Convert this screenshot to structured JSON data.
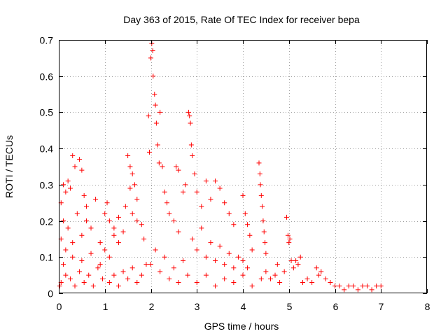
{
  "chart_data": {
    "type": "scatter",
    "title": "Day 363 of 2015, Rate Of TEC Index for receiver bepa",
    "xlabel": "GPS time / hours",
    "ylabel": "ROTI / TECUs",
    "xlim": [
      0,
      8
    ],
    "ylim": [
      0,
      0.7
    ],
    "x_ticks": [
      "0",
      "1",
      "2",
      "3",
      "4",
      "5",
      "6",
      "7",
      "8"
    ],
    "y_ticks": [
      "0",
      "0.1",
      "0.2",
      "0.3",
      "0.4",
      "0.5",
      "0.6",
      "0.7"
    ],
    "grid": true,
    "marker": "+",
    "color": "#ff0000",
    "series": [
      {
        "name": "ROTI",
        "points": [
          [
            0.02,
            0.02
          ],
          [
            0.05,
            0.25
          ],
          [
            0.1,
            0.3
          ],
          [
            0.15,
            0.28
          ],
          [
            0.2,
            0.31
          ],
          [
            0.25,
            0.29
          ],
          [
            0.3,
            0.38
          ],
          [
            0.35,
            0.35
          ],
          [
            0.45,
            0.37
          ],
          [
            0.5,
            0.34
          ],
          [
            0.55,
            0.27
          ],
          [
            0.6,
            0.24
          ],
          [
            0.05,
            0.15
          ],
          [
            0.1,
            0.2
          ],
          [
            0.15,
            0.12
          ],
          [
            0.2,
            0.18
          ],
          [
            0.3,
            0.14
          ],
          [
            0.4,
            0.22
          ],
          [
            0.5,
            0.16
          ],
          [
            0.6,
            0.2
          ],
          [
            0.7,
            0.18
          ],
          [
            0.8,
            0.26
          ],
          [
            0.9,
            0.14
          ],
          [
            0.05,
            0.03
          ],
          [
            0.15,
            0.05
          ],
          [
            0.25,
            0.04
          ],
          [
            0.35,
            0.02
          ],
          [
            0.45,
            0.06
          ],
          [
            0.55,
            0.03
          ],
          [
            0.65,
            0.05
          ],
          [
            0.75,
            0.02
          ],
          [
            0.85,
            0.07
          ],
          [
            0.95,
            0.04
          ],
          [
            0.1,
            0.08
          ],
          [
            0.3,
            0.1
          ],
          [
            0.5,
            0.09
          ],
          [
            0.7,
            0.11
          ],
          [
            0.9,
            0.08
          ],
          [
            1.0,
            0.12
          ],
          [
            1.1,
            0.1
          ],
          [
            1.2,
            0.16
          ],
          [
            1.3,
            0.14
          ],
          [
            1.0,
            0.22
          ],
          [
            1.05,
            0.25
          ],
          [
            1.1,
            0.2
          ],
          [
            1.2,
            0.18
          ],
          [
            1.3,
            0.21
          ],
          [
            1.4,
            0.17
          ],
          [
            1.45,
            0.24
          ],
          [
            1.5,
            0.38
          ],
          [
            1.55,
            0.35
          ],
          [
            1.6,
            0.33
          ],
          [
            1.65,
            0.3
          ],
          [
            1.7,
            0.26
          ],
          [
            1.55,
            0.29
          ],
          [
            1.6,
            0.22
          ],
          [
            1.7,
            0.2
          ],
          [
            1.8,
            0.19
          ],
          [
            1.85,
            0.15
          ],
          [
            1.1,
            0.03
          ],
          [
            1.2,
            0.05
          ],
          [
            1.3,
            0.02
          ],
          [
            1.4,
            0.06
          ],
          [
            1.5,
            0.04
          ],
          [
            1.6,
            0.07
          ],
          [
            1.7,
            0.03
          ],
          [
            1.8,
            0.05
          ],
          [
            1.9,
            0.08
          ],
          [
            1.95,
            0.49
          ],
          [
            2.0,
            0.65
          ],
          [
            2.02,
            0.69
          ],
          [
            2.04,
            0.67
          ],
          [
            2.05,
            0.6
          ],
          [
            2.08,
            0.55
          ],
          [
            2.1,
            0.52
          ],
          [
            2.12,
            0.47
          ],
          [
            2.15,
            0.41
          ],
          [
            2.18,
            0.36
          ],
          [
            1.97,
            0.39
          ],
          [
            2.2,
            0.5
          ],
          [
            2.25,
            0.35
          ],
          [
            2.3,
            0.28
          ],
          [
            2.35,
            0.25
          ],
          [
            2.4,
            0.22
          ],
          [
            2.5,
            0.2
          ],
          [
            2.6,
            0.17
          ],
          [
            2.0,
            0.08
          ],
          [
            2.1,
            0.12
          ],
          [
            2.2,
            0.06
          ],
          [
            2.3,
            0.1
          ],
          [
            2.4,
            0.04
          ],
          [
            2.5,
            0.07
          ],
          [
            2.6,
            0.03
          ],
          [
            2.7,
            0.09
          ],
          [
            2.8,
            0.05
          ],
          [
            2.55,
            0.35
          ],
          [
            2.6,
            0.34
          ],
          [
            2.7,
            0.28
          ],
          [
            2.75,
            0.3
          ],
          [
            2.82,
            0.5
          ],
          [
            2.84,
            0.49
          ],
          [
            2.86,
            0.47
          ],
          [
            2.88,
            0.41
          ],
          [
            2.9,
            0.38
          ],
          [
            2.95,
            0.33
          ],
          [
            3.0,
            0.28
          ],
          [
            3.1,
            0.24
          ],
          [
            3.2,
            0.31
          ],
          [
            3.3,
            0.26
          ],
          [
            3.4,
            0.31
          ],
          [
            3.5,
            0.29
          ],
          [
            3.6,
            0.25
          ],
          [
            3.7,
            0.22
          ],
          [
            3.8,
            0.19
          ],
          [
            2.9,
            0.15
          ],
          [
            3.0,
            0.12
          ],
          [
            3.1,
            0.18
          ],
          [
            3.2,
            0.1
          ],
          [
            3.3,
            0.14
          ],
          [
            3.4,
            0.09
          ],
          [
            3.5,
            0.13
          ],
          [
            3.6,
            0.08
          ],
          [
            3.7,
            0.11
          ],
          [
            3.8,
            0.07
          ],
          [
            3.9,
            0.1
          ],
          [
            3.0,
            0.03
          ],
          [
            3.2,
            0.05
          ],
          [
            3.4,
            0.02
          ],
          [
            3.6,
            0.04
          ],
          [
            3.8,
            0.03
          ],
          [
            4.0,
            0.05
          ],
          [
            4.2,
            0.02
          ],
          [
            4.4,
            0.04
          ],
          [
            4.0,
            0.27
          ],
          [
            4.05,
            0.22
          ],
          [
            4.1,
            0.19
          ],
          [
            4.15,
            0.16
          ],
          [
            4.2,
            0.12
          ],
          [
            4.0,
            0.09
          ],
          [
            4.1,
            0.07
          ],
          [
            4.35,
            0.36
          ],
          [
            4.37,
            0.33
          ],
          [
            4.38,
            0.3
          ],
          [
            4.4,
            0.27
          ],
          [
            4.42,
            0.24
          ],
          [
            4.44,
            0.2
          ],
          [
            4.46,
            0.17
          ],
          [
            4.48,
            0.14
          ],
          [
            4.5,
            0.11
          ],
          [
            4.5,
            0.06
          ],
          [
            4.6,
            0.04
          ],
          [
            4.7,
            0.05
          ],
          [
            4.8,
            0.03
          ],
          [
            4.9,
            0.06
          ],
          [
            4.75,
            0.08
          ],
          [
            4.95,
            0.21
          ],
          [
            4.98,
            0.16
          ],
          [
            5.0,
            0.14
          ],
          [
            5.02,
            0.15
          ],
          [
            5.05,
            0.09
          ],
          [
            5.1,
            0.07
          ],
          [
            5.15,
            0.09
          ],
          [
            5.2,
            0.08
          ],
          [
            5.25,
            0.1
          ],
          [
            5.3,
            0.03
          ],
          [
            5.4,
            0.04
          ],
          [
            5.5,
            0.03
          ],
          [
            5.6,
            0.07
          ],
          [
            5.65,
            0.05
          ],
          [
            5.7,
            0.06
          ],
          [
            5.8,
            0.04
          ],
          [
            5.9,
            0.03
          ],
          [
            6.0,
            0.02
          ],
          [
            6.1,
            0.02
          ],
          [
            6.2,
            0.01
          ],
          [
            6.3,
            0.02
          ],
          [
            6.4,
            0.02
          ],
          [
            6.5,
            0.01
          ],
          [
            6.6,
            0.02
          ],
          [
            6.7,
            0.02
          ],
          [
            6.8,
            0.01
          ],
          [
            6.9,
            0.02
          ],
          [
            7.0,
            0.02
          ]
        ]
      }
    ]
  }
}
